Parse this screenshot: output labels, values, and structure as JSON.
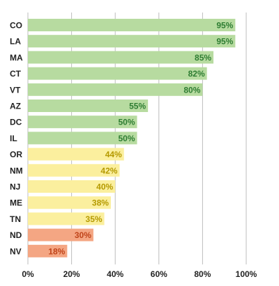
{
  "chart_data": {
    "type": "bar",
    "orientation": "horizontal",
    "categories": [
      "CO",
      "LA",
      "MA",
      "CT",
      "VT",
      "AZ",
      "DC",
      "IL",
      "OR",
      "NM",
      "NJ",
      "ME",
      "TN",
      "ND",
      "NV"
    ],
    "values": [
      95,
      95,
      85,
      82,
      80,
      55,
      50,
      50,
      44,
      42,
      40,
      38,
      35,
      30,
      18
    ],
    "value_labels": [
      "95%",
      "95%",
      "85%",
      "82%",
      "80%",
      "55%",
      "50%",
      "50%",
      "44%",
      "42%",
      "40%",
      "38%",
      "35%",
      "30%",
      "18%"
    ],
    "xlim": [
      0,
      100
    ],
    "x_ticks": [
      0,
      20,
      40,
      60,
      80,
      100
    ],
    "x_tick_labels": [
      "0%",
      "20%",
      "40%",
      "60%",
      "80%",
      "100%"
    ],
    "grid": "vertical gridlines",
    "colors": {
      "green_bar": "#b7dba0",
      "green_text": "#2e7d32",
      "yellow_bar": "#fbef9e",
      "yellow_text": "#b59a00",
      "orange_bar": "#f4a683",
      "orange_text": "#c0441a",
      "grid": "#bdbdbd"
    },
    "bar_color_groups": [
      "green",
      "green",
      "green",
      "green",
      "green",
      "green",
      "green",
      "green",
      "yellow",
      "yellow",
      "yellow",
      "yellow",
      "yellow",
      "orange",
      "orange"
    ]
  }
}
